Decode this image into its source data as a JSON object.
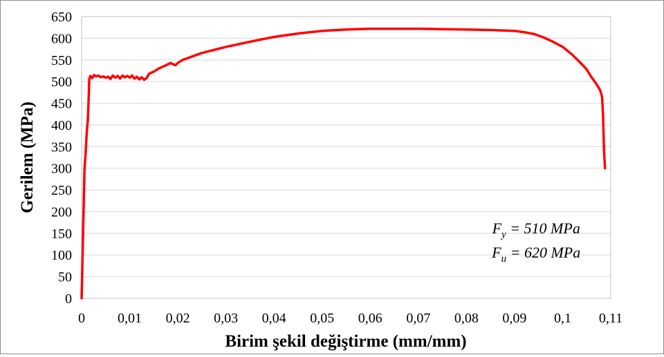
{
  "chart_data": {
    "type": "line",
    "xlabel": "Birim şekil değiştirme (mm/mm)",
    "ylabel": "Gerilem (MPa)",
    "xlim": [
      0,
      0.11
    ],
    "ylim": [
      0,
      650
    ],
    "x_ticks": [
      "0",
      "0,01",
      "0,02",
      "0,03",
      "0,04",
      "0,05",
      "0,06",
      "0,07",
      "0,08",
      "0,09",
      "0,1",
      "0,11"
    ],
    "x_tick_values": [
      0,
      0.01,
      0.02,
      0.03,
      0.04,
      0.05,
      0.06,
      0.07,
      0.08,
      0.09,
      0.1,
      0.11
    ],
    "y_ticks": [
      "0",
      "50",
      "100",
      "150",
      "200",
      "250",
      "300",
      "350",
      "400",
      "450",
      "500",
      "550",
      "600",
      "650"
    ],
    "y_tick_values": [
      0,
      50,
      100,
      150,
      200,
      250,
      300,
      350,
      400,
      450,
      500,
      550,
      600,
      650
    ],
    "grid": "horizontal",
    "series": [
      {
        "color": "#ff0000",
        "points": [
          [
            0,
            0
          ],
          [
            0.0003,
            150
          ],
          [
            0.0006,
            300
          ],
          [
            0.0008,
            330
          ],
          [
            0.0011,
            390
          ],
          [
            0.0013,
            410
          ],
          [
            0.0015,
            470
          ],
          [
            0.0016,
            505
          ],
          [
            0.0018,
            513
          ],
          [
            0.0022,
            508
          ],
          [
            0.0026,
            515
          ],
          [
            0.003,
            512
          ],
          [
            0.0035,
            514
          ],
          [
            0.004,
            510
          ],
          [
            0.0045,
            512
          ],
          [
            0.005,
            509
          ],
          [
            0.0055,
            511
          ],
          [
            0.006,
            506
          ],
          [
            0.0065,
            514
          ],
          [
            0.007,
            509
          ],
          [
            0.0075,
            513
          ],
          [
            0.008,
            507
          ],
          [
            0.0085,
            514
          ],
          [
            0.009,
            510
          ],
          [
            0.0095,
            513
          ],
          [
            0.01,
            509
          ],
          [
            0.0105,
            514
          ],
          [
            0.011,
            507
          ],
          [
            0.0115,
            511
          ],
          [
            0.012,
            505
          ],
          [
            0.0125,
            510
          ],
          [
            0.013,
            504
          ],
          [
            0.0135,
            508
          ],
          [
            0.014,
            518
          ],
          [
            0.015,
            523
          ],
          [
            0.016,
            530
          ],
          [
            0.017,
            535
          ],
          [
            0.018,
            540
          ],
          [
            0.0185,
            543
          ],
          [
            0.019,
            540
          ],
          [
            0.0195,
            538
          ],
          [
            0.02,
            543
          ],
          [
            0.021,
            550
          ],
          [
            0.022,
            554
          ],
          [
            0.025,
            566
          ],
          [
            0.03,
            580
          ],
          [
            0.035,
            592
          ],
          [
            0.04,
            603
          ],
          [
            0.045,
            611
          ],
          [
            0.05,
            617
          ],
          [
            0.055,
            620
          ],
          [
            0.06,
            622
          ],
          [
            0.065,
            622
          ],
          [
            0.07,
            622
          ],
          [
            0.075,
            621
          ],
          [
            0.08,
            620
          ],
          [
            0.085,
            619
          ],
          [
            0.09,
            617
          ],
          [
            0.092,
            614
          ],
          [
            0.094,
            610
          ],
          [
            0.096,
            602
          ],
          [
            0.098,
            592
          ],
          [
            0.1,
            580
          ],
          [
            0.102,
            562
          ],
          [
            0.104,
            540
          ],
          [
            0.105,
            528
          ],
          [
            0.106,
            510
          ],
          [
            0.107,
            495
          ],
          [
            0.1078,
            480
          ],
          [
            0.1082,
            465
          ],
          [
            0.1084,
            420
          ],
          [
            0.1086,
            340
          ],
          [
            0.1088,
            300
          ]
        ]
      }
    ],
    "annotations": [
      {
        "main": "F",
        "sub": "y",
        "rest": " = 510 MPa",
        "x": 0.0945,
        "y": 150
      },
      {
        "main": "F",
        "sub": "u",
        "rest": " = 620 MPa",
        "x": 0.0945,
        "y": 94
      }
    ]
  }
}
